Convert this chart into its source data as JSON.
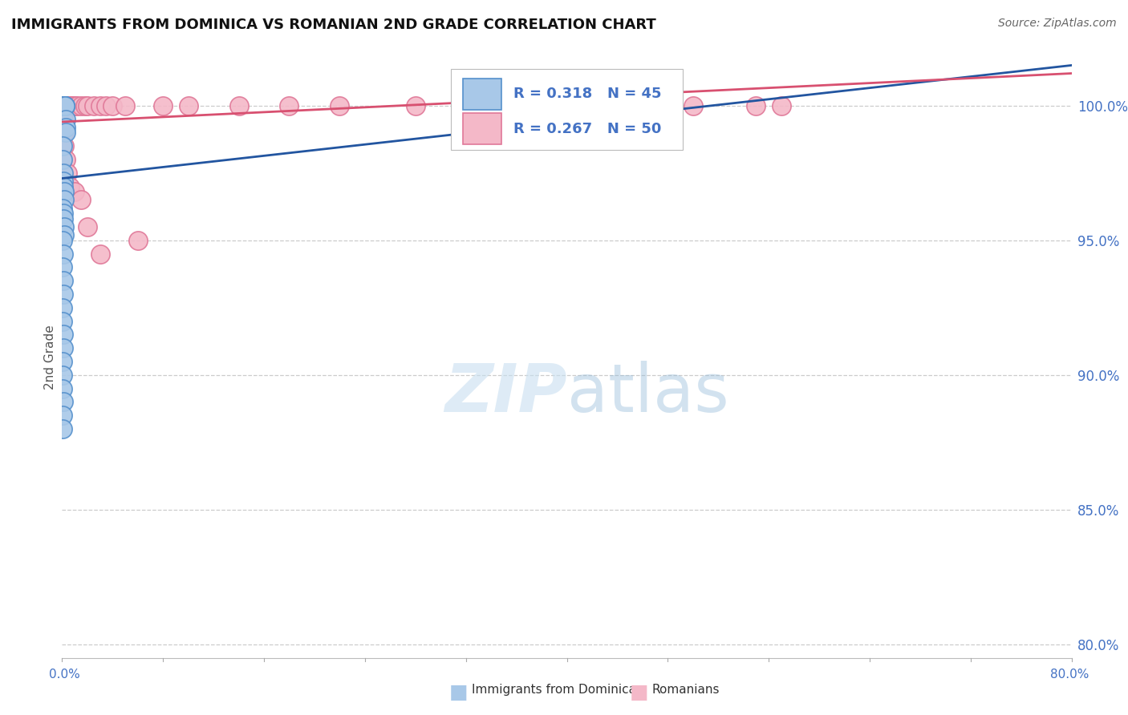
{
  "title": "IMMIGRANTS FROM DOMINICA VS ROMANIAN 2ND GRADE CORRELATION CHART",
  "source": "Source: ZipAtlas.com",
  "ylabel": "2nd Grade",
  "yticks": [
    80.0,
    85.0,
    90.0,
    95.0,
    100.0
  ],
  "ytick_labels": [
    "80.0%",
    "85.0%",
    "90.0%",
    "95.0%",
    "100.0%"
  ],
  "xlim": [
    0.0,
    80.0
  ],
  "ylim": [
    79.5,
    101.8
  ],
  "legend1_r": "0.318",
  "legend1_n": "45",
  "legend2_r": "0.267",
  "legend2_n": "50",
  "blue_color": "#a8c8e8",
  "blue_edge": "#5590cc",
  "pink_color": "#f4b8c8",
  "pink_edge": "#e07898",
  "blue_line_color": "#2255a0",
  "pink_line_color": "#d85070",
  "legend_color": "#4472c4",
  "watermark_color": "#c8dff0",
  "blue_scatter_x": [
    0.05,
    0.05,
    0.08,
    0.1,
    0.1,
    0.12,
    0.12,
    0.15,
    0.15,
    0.18,
    0.2,
    0.2,
    0.22,
    0.25,
    0.25,
    0.28,
    0.3,
    0.3,
    0.05,
    0.06,
    0.08,
    0.1,
    0.12,
    0.15,
    0.18,
    0.05,
    0.08,
    0.1,
    0.15,
    0.2,
    0.05,
    0.08,
    0.06,
    0.1,
    0.12,
    0.05,
    0.07,
    0.08,
    0.1,
    0.06,
    0.05,
    0.06,
    0.08,
    0.05,
    0.06
  ],
  "blue_scatter_y": [
    100.0,
    100.0,
    100.0,
    100.0,
    100.0,
    100.0,
    100.0,
    100.0,
    100.0,
    100.0,
    100.0,
    100.0,
    100.0,
    100.0,
    100.0,
    99.5,
    99.2,
    99.0,
    98.5,
    98.0,
    97.5,
    97.2,
    97.0,
    96.8,
    96.5,
    96.2,
    96.0,
    95.8,
    95.5,
    95.2,
    95.0,
    94.5,
    94.0,
    93.5,
    93.0,
    92.5,
    92.0,
    91.5,
    91.0,
    90.5,
    90.0,
    89.5,
    89.0,
    88.5,
    88.0
  ],
  "pink_scatter_x": [
    0.05,
    0.08,
    0.1,
    0.12,
    0.15,
    0.18,
    0.2,
    0.22,
    0.25,
    0.28,
    0.3,
    0.35,
    0.4,
    0.45,
    0.5,
    0.6,
    0.7,
    0.8,
    1.0,
    1.2,
    1.5,
    1.8,
    2.0,
    2.5,
    3.0,
    3.5,
    4.0,
    5.0,
    6.0,
    8.0,
    10.0,
    14.0,
    18.0,
    22.0,
    28.0,
    35.0,
    42.0,
    50.0,
    55.0,
    57.0,
    0.1,
    0.15,
    0.2,
    0.3,
    0.4,
    0.6,
    1.0,
    1.5,
    2.0,
    3.0
  ],
  "pink_scatter_y": [
    100.0,
    100.0,
    100.0,
    100.0,
    100.0,
    100.0,
    100.0,
    100.0,
    100.0,
    100.0,
    100.0,
    100.0,
    100.0,
    100.0,
    100.0,
    100.0,
    100.0,
    100.0,
    100.0,
    100.0,
    100.0,
    100.0,
    100.0,
    100.0,
    100.0,
    100.0,
    100.0,
    100.0,
    95.0,
    100.0,
    100.0,
    100.0,
    100.0,
    100.0,
    100.0,
    100.0,
    100.0,
    100.0,
    100.0,
    100.0,
    99.5,
    99.0,
    98.5,
    98.0,
    97.5,
    97.0,
    96.8,
    96.5,
    95.5,
    94.5
  ],
  "blue_trend_x0": 0.0,
  "blue_trend_y0": 97.3,
  "blue_trend_x1": 80.0,
  "blue_trend_y1": 101.5,
  "pink_trend_x0": 0.0,
  "pink_trend_y0": 99.4,
  "pink_trend_x1": 80.0,
  "pink_trend_y1": 101.2
}
